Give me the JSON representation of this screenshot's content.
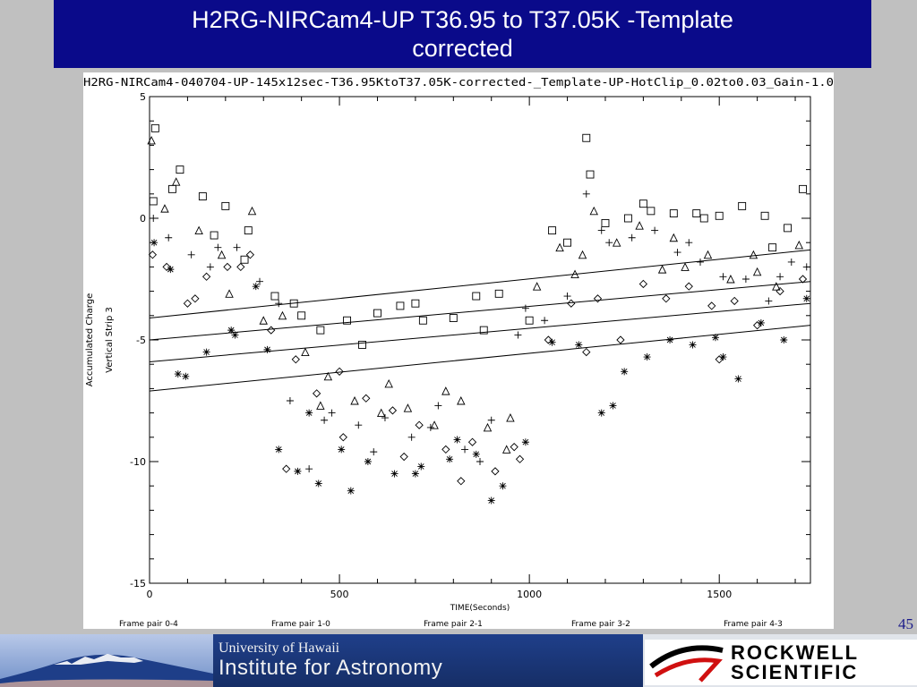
{
  "slide": {
    "title_line1": "H2RG-NIRCam4-UP T36.95 to T37.05K -Template",
    "title_line2": "corrected",
    "number": "45"
  },
  "footer": {
    "uh_line1": "University of Hawaii",
    "uh_line2": "Institute for Astronomy",
    "rs_line1": "ROCKWELL",
    "rs_line2": "SCIENTIFIC",
    "accent_blue": "#0a0a8a"
  },
  "chart_data": {
    "type": "scatter",
    "title": "H2RG-NIRCam4-040704-UP-145x12sec-T36.95KtoT37.05K-corrected-_Template-UP-HotClip_0.02to0.03_Gain-1.0",
    "xlabel": "TIME(Seconds)",
    "ylabel": "Accumulated Charge",
    "ylabel2": "Vertical Strip 3",
    "xlim": [
      0,
      1740
    ],
    "ylim": [
      -15,
      5
    ],
    "xticks": [
      "0",
      "500",
      "1000",
      "1500"
    ],
    "xtick_values": [
      0,
      500,
      1000,
      1500
    ],
    "yticks": [
      "5",
      "0",
      "-5",
      "-10",
      "-15"
    ],
    "ytick_values": [
      5,
      0,
      -5,
      -10,
      -15
    ],
    "frame_pair_labels": [
      "Frame pair 0-4",
      "Frame pair 1-0",
      "Frame pair 2-1",
      "Frame pair 3-2",
      "Frame pair 4-3"
    ],
    "fit_lines": [
      {
        "x": [
          0,
          1740
        ],
        "y": [
          -4.1,
          -1.3
        ]
      },
      {
        "x": [
          0,
          1740
        ],
        "y": [
          -5.0,
          -2.6
        ]
      },
      {
        "x": [
          0,
          1740
        ],
        "y": [
          -5.9,
          -3.5
        ]
      },
      {
        "x": [
          0,
          1740
        ],
        "y": [
          -7.1,
          -4.4
        ]
      }
    ],
    "series": [
      {
        "marker": "square",
        "x": [
          15,
          80,
          140,
          200,
          260,
          330,
          380,
          450,
          520,
          600,
          660,
          720,
          800,
          860,
          920,
          1000,
          1060,
          1100,
          1150,
          1200,
          1260,
          1320,
          1380,
          1440,
          1500,
          1560,
          1620,
          1680,
          1720,
          10,
          60,
          170,
          250,
          400,
          560,
          700,
          880,
          1160,
          1300,
          1460,
          1640
        ],
        "y": [
          3.7,
          2.0,
          0.9,
          0.5,
          -0.5,
          -3.2,
          -3.5,
          -4.6,
          -4.2,
          -3.9,
          -3.6,
          -4.2,
          -4.1,
          -3.2,
          -3.1,
          -4.2,
          -0.5,
          -1.0,
          3.3,
          -0.2,
          0.0,
          0.3,
          0.2,
          0.2,
          0.1,
          0.5,
          0.1,
          -0.4,
          1.2,
          0.7,
          1.2,
          -0.7,
          -1.7,
          -4.0,
          -5.2,
          -3.5,
          -4.6,
          1.8,
          0.6,
          0.0,
          -1.2
        ]
      },
      {
        "marker": "triangle",
        "x": [
          5,
          70,
          130,
          190,
          270,
          350,
          410,
          470,
          540,
          610,
          680,
          750,
          820,
          890,
          950,
          1020,
          1080,
          1120,
          1170,
          1230,
          1290,
          1350,
          1410,
          1470,
          1530,
          1590,
          1650,
          1710,
          40,
          210,
          300,
          450,
          630,
          780,
          940,
          1140,
          1380,
          1600
        ],
        "y": [
          3.2,
          1.5,
          -0.5,
          -1.5,
          0.3,
          -4.0,
          -5.5,
          -6.5,
          -7.5,
          -8.0,
          -7.8,
          -8.5,
          -7.5,
          -8.6,
          -8.2,
          -2.8,
          -1.2,
          -2.3,
          0.3,
          -1.0,
          -0.3,
          -2.1,
          -2.0,
          -1.5,
          -2.5,
          -1.5,
          -2.8,
          -1.1,
          0.4,
          -3.1,
          -4.2,
          -7.7,
          -6.8,
          -7.1,
          -9.5,
          -1.5,
          -0.8,
          -2.2
        ]
      },
      {
        "marker": "plus",
        "x": [
          10,
          50,
          110,
          160,
          230,
          290,
          370,
          420,
          480,
          550,
          620,
          690,
          760,
          830,
          900,
          970,
          1040,
          1100,
          1150,
          1210,
          1270,
          1330,
          1390,
          1450,
          1510,
          1570,
          1630,
          1690,
          1730,
          180,
          340,
          460,
          590,
          740,
          870,
          990,
          1190,
          1420,
          1660
        ],
        "y": [
          0.0,
          -0.8,
          -1.5,
          -2.0,
          -1.2,
          -2.6,
          -7.5,
          -10.3,
          -8.0,
          -8.5,
          -8.2,
          -9.0,
          -7.7,
          -9.5,
          -8.3,
          -4.8,
          -4.2,
          -3.2,
          1.0,
          -1.0,
          -0.8,
          -0.5,
          -1.4,
          -1.8,
          -2.4,
          -2.5,
          -3.4,
          -1.8,
          -2.0,
          -1.2,
          -3.5,
          -8.3,
          -9.6,
          -8.6,
          -10.0,
          -3.7,
          -0.5,
          -1.0,
          -2.4
        ]
      },
      {
        "marker": "diamond",
        "x": [
          8,
          45,
          100,
          150,
          205,
          265,
          320,
          385,
          440,
          500,
          570,
          640,
          710,
          780,
          850,
          910,
          975,
          1050,
          1110,
          1180,
          1240,
          1300,
          1360,
          1420,
          1480,
          1540,
          1600,
          1660,
          1720,
          120,
          240,
          360,
          510,
          670,
          820,
          960,
          1150,
          1500
        ],
        "y": [
          -1.5,
          -2.0,
          -3.5,
          -2.4,
          -2.0,
          -1.5,
          -4.6,
          -5.8,
          -7.2,
          -6.3,
          -7.4,
          -7.9,
          -8.5,
          -9.5,
          -9.2,
          -10.4,
          -9.9,
          -5.0,
          -3.5,
          -3.3,
          -5.0,
          -2.7,
          -3.3,
          -2.8,
          -3.6,
          -3.4,
          -4.4,
          -3.0,
          -2.5,
          -3.3,
          -2.0,
          -10.3,
          -9.0,
          -9.8,
          -10.8,
          -9.4,
          -5.5,
          -5.8
        ]
      },
      {
        "marker": "asterisk",
        "x": [
          12,
          55,
          95,
          150,
          215,
          280,
          340,
          390,
          445,
          505,
          575,
          645,
          715,
          790,
          860,
          930,
          990,
          1060,
          1130,
          1190,
          1250,
          1310,
          1370,
          1430,
          1490,
          1550,
          1610,
          1670,
          1730,
          75,
          225,
          310,
          420,
          530,
          700,
          810,
          900,
          1220,
          1510
        ],
        "y": [
          -1.0,
          -2.1,
          -6.5,
          -5.5,
          -4.6,
          -2.8,
          -9.5,
          -10.4,
          -10.9,
          -9.5,
          -10.0,
          -10.5,
          -10.2,
          -9.9,
          -9.7,
          -11.0,
          -9.2,
          -5.1,
          -5.2,
          -8.0,
          -6.3,
          -5.7,
          -5.0,
          -5.2,
          -4.9,
          -6.6,
          -4.3,
          -5.0,
          -3.3,
          -6.4,
          -4.8,
          -5.4,
          -8.0,
          -11.2,
          -10.5,
          -9.1,
          -11.6,
          -7.7,
          -5.7
        ]
      }
    ]
  }
}
